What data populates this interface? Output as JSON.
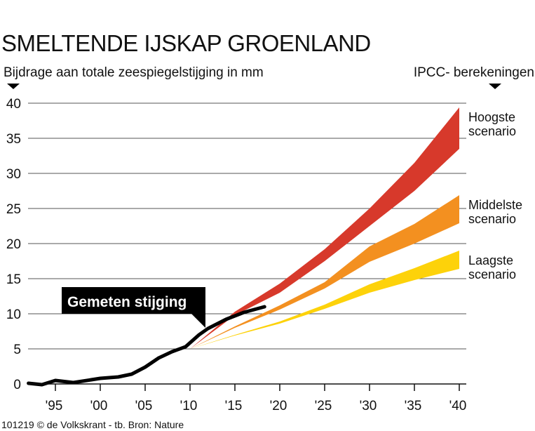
{
  "title": "SMELTENDE IJSKAP GROENLAND",
  "subtitle_left": "Bijdrage aan totale zeespiegelstijging in mm",
  "subtitle_right": "IPCC- berekeningen",
  "credit": "101219 © de Volkskrant - tb. Bron: Nature",
  "callout": "Gemeten stijging",
  "colors": {
    "measured": "#000000",
    "high": "#d7392b",
    "mid": "#f39020",
    "low": "#fdd20a",
    "grid": "#555555"
  },
  "chart_data": {
    "type": "area",
    "title": "SMELTENDE IJSKAP GROENLAND",
    "ylabel": "Bijdrage aan totale zeespiegelstijging in mm",
    "ylim": [
      0,
      40
    ],
    "xlim": [
      1992,
      2040
    ],
    "yticks": [
      0,
      5,
      10,
      15,
      20,
      25,
      30,
      35,
      40
    ],
    "xticks": [
      1995,
      2000,
      2005,
      2010,
      2015,
      2020,
      2025,
      2030,
      2035,
      2040
    ],
    "xtick_labels": [
      "'95",
      "'00",
      "'05",
      "'10",
      "'15",
      "'20",
      "'25",
      "'30",
      "'35",
      "'40"
    ],
    "grid": true,
    "measured": {
      "name": "Gemeten stijging",
      "x": [
        1992,
        1993.5,
        1995,
        1997,
        1999,
        2000,
        2002,
        2003.5,
        2005,
        2006.5,
        2008,
        2009.5,
        2011,
        2012,
        2014,
        2016,
        2018.3
      ],
      "y": [
        0.1,
        -0.1,
        0.5,
        0.2,
        0.6,
        0.8,
        1.0,
        1.4,
        2.4,
        3.7,
        4.6,
        5.3,
        7.0,
        7.9,
        9.2,
        10.2,
        11.0
      ]
    },
    "scenarios": [
      {
        "name": "Hoogste scenario",
        "label1": "Hoogste",
        "label2": "scenario",
        "color": "#d7392b",
        "x": [
          2010,
          2015,
          2020,
          2025,
          2030,
          2035,
          2040
        ],
        "upper": [
          5,
          10.3,
          14.3,
          19.2,
          25,
          31.5,
          39.4
        ],
        "lower": [
          5,
          9.8,
          13,
          17.5,
          22.5,
          27.5,
          33.5
        ]
      },
      {
        "name": "Middelste scenario",
        "label1": "Middelste",
        "label2": "scenario",
        "color": "#f39020",
        "x": [
          2010,
          2015,
          2020,
          2025,
          2030,
          2035,
          2040
        ],
        "upper": [
          5,
          8.2,
          11.2,
          14.5,
          19.6,
          22.8,
          26.9
        ],
        "lower": [
          5,
          8.0,
          10.6,
          13.6,
          17.4,
          20.0,
          22.9
        ]
      },
      {
        "name": "Laagste scenario",
        "label1": "Laagste",
        "label2": "scenario",
        "color": "#fdd20a",
        "x": [
          2010,
          2015,
          2020,
          2025,
          2030,
          2035,
          2040
        ],
        "upper": [
          5,
          7.0,
          8.9,
          11.3,
          14.2,
          16.5,
          19.0
        ],
        "lower": [
          5,
          6.9,
          8.6,
          10.7,
          13.0,
          14.8,
          16.4
        ]
      }
    ]
  }
}
